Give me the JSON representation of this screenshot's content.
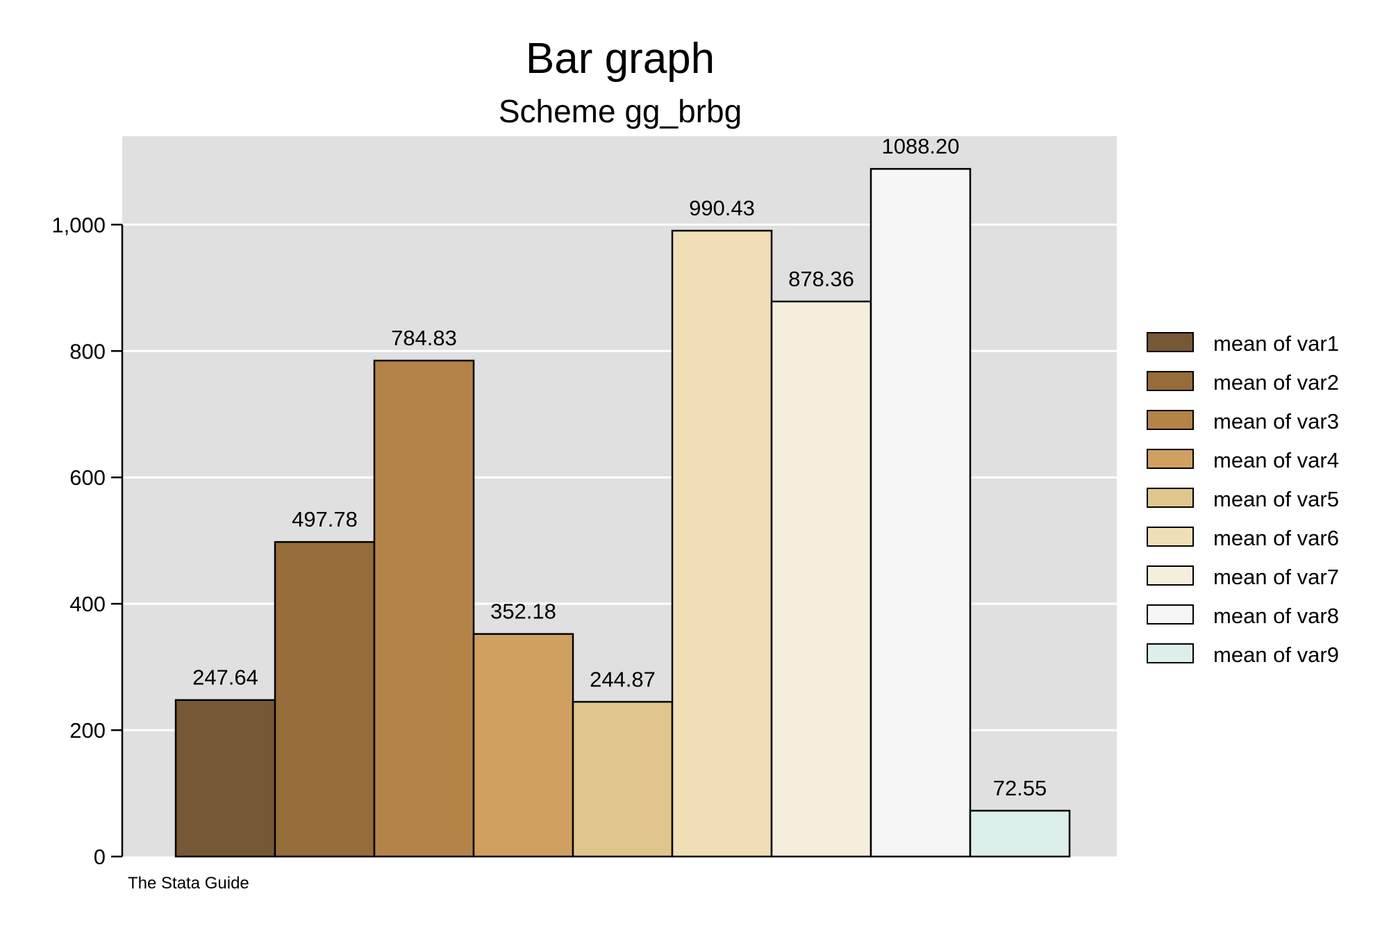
{
  "chart_data": {
    "type": "bar",
    "title": "Bar graph",
    "subtitle": "Scheme gg_brbg",
    "note": "The Stata Guide",
    "xlabel": "",
    "ylabel": "",
    "ylim": [
      0,
      1140
    ],
    "yticks": [
      0,
      200,
      400,
      600,
      800,
      1000
    ],
    "ytick_labels": [
      "0",
      "200",
      "400",
      "600",
      "800",
      "1,000"
    ],
    "grid": true,
    "legend_position": "right",
    "series": [
      {
        "name": "mean of var1",
        "value": 247.64,
        "label": "247.64",
        "color": "#765836"
      },
      {
        "name": "mean of var2",
        "value": 497.78,
        "label": "497.78",
        "color": "#966c3a"
      },
      {
        "name": "mean of var3",
        "value": 784.83,
        "label": "784.83",
        "color": "#b48348"
      },
      {
        "name": "mean of var4",
        "value": 352.18,
        "label": "352.18",
        "color": "#d0a060"
      },
      {
        "name": "mean of var5",
        "value": 244.87,
        "label": "244.87",
        "color": "#e0c68c"
      },
      {
        "name": "mean of var6",
        "value": 990.43,
        "label": "990.43",
        "color": "#f0deb6"
      },
      {
        "name": "mean of var7",
        "value": 878.36,
        "label": "878.36",
        "color": "#f6eedd"
      },
      {
        "name": "mean of var8",
        "value": 1088.2,
        "label": "1088.20",
        "color": "#f6f6f6"
      },
      {
        "name": "mean of var9",
        "value": 72.55,
        "label": "72.55",
        "color": "#dcefea"
      }
    ],
    "plot_background": "#e0e0e0",
    "gridline_color": "#ffffff"
  }
}
